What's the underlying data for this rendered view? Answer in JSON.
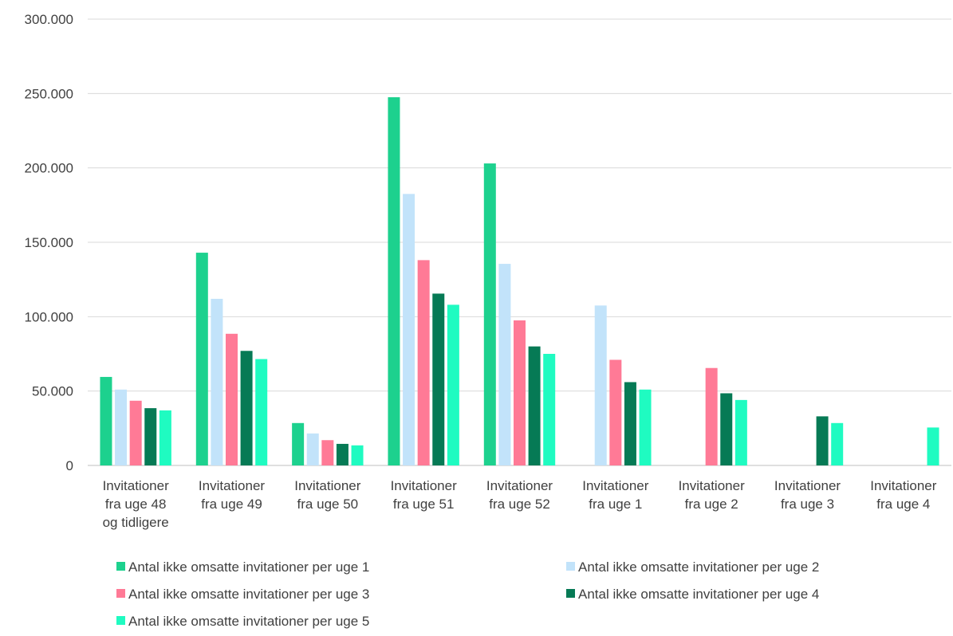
{
  "chart_data": {
    "type": "bar",
    "categories": [
      [
        "Invitationer",
        "fra uge 48",
        "og tidligere"
      ],
      [
        "Invitationer",
        "fra uge 49"
      ],
      [
        "Invitationer",
        "fra uge 50"
      ],
      [
        "Invitationer",
        "fra uge 51"
      ],
      [
        "Invitationer",
        "fra uge 52"
      ],
      [
        "Invitationer",
        "fra uge 1"
      ],
      [
        "Invitationer",
        "fra uge 2"
      ],
      [
        "Invitationer",
        "fra uge 3"
      ],
      [
        "Invitationer",
        "fra uge 4"
      ]
    ],
    "series": [
      {
        "name": "Antal ikke omsatte invitationer per uge 1",
        "color": "#1DD18E",
        "values": [
          59500,
          143000,
          28500,
          247500,
          203000,
          null,
          null,
          null,
          null
        ]
      },
      {
        "name": "Antal ikke omsatte invitationer per uge 2",
        "color": "#C2E3FA",
        "values": [
          51000,
          112000,
          21500,
          182500,
          135500,
          107500,
          null,
          null,
          null
        ]
      },
      {
        "name": "Antal ikke omsatte invitationer per uge 3",
        "color": "#FF7A96",
        "values": [
          43500,
          88500,
          17000,
          138000,
          97500,
          71000,
          65500,
          null,
          null
        ]
      },
      {
        "name": "Antal ikke omsatte invitationer per uge 4",
        "color": "#067A55",
        "values": [
          38500,
          77000,
          14500,
          115500,
          80000,
          56000,
          48500,
          33000,
          null
        ]
      },
      {
        "name": "Antal ikke omsatte invitationer per uge 5",
        "color": "#1FFBC1",
        "values": [
          37000,
          71500,
          13500,
          108000,
          75000,
          51000,
          44000,
          28500,
          25500
        ]
      }
    ],
    "yticks": [
      "0",
      "50.000",
      "100.000",
      "150.000",
      "200.000",
      "250.000",
      "300.000"
    ],
    "ylim": [
      0,
      300000
    ],
    "grid": true,
    "legend_position": "bottom"
  }
}
